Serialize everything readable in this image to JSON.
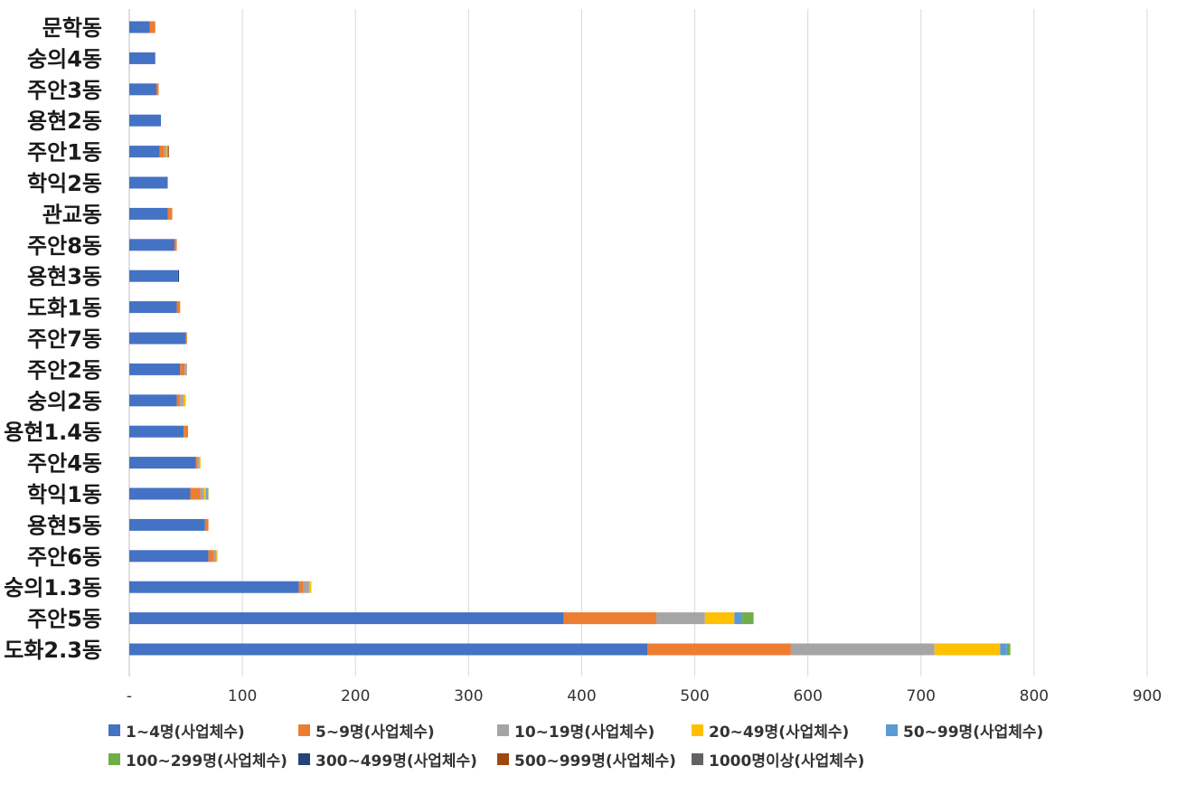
{
  "chart_data": {
    "type": "bar",
    "orientation": "horizontal",
    "stacked": true,
    "categories": [
      "문학동",
      "숭의4동",
      "주안3동",
      "용현2동",
      "주안1동",
      "학익2동",
      "관교동",
      "주안8동",
      "용현3동",
      "도화1동",
      "주안7동",
      "주안2동",
      "숭의2동",
      "용현1.4동",
      "주안4동",
      "학익1동",
      "용현5동",
      "주안6동",
      "숭의1.3동",
      "주안5동",
      "도화2.3동"
    ],
    "series": [
      {
        "name": "1~4명(사업체수)",
        "color": "#4472C4",
        "values": [
          18,
          23,
          24,
          28,
          27,
          34,
          34,
          40,
          43,
          42,
          50,
          45,
          42,
          48,
          59,
          54,
          67,
          70,
          150,
          384,
          458
        ]
      },
      {
        "name": "5~9명(사업체수)",
        "color": "#ED7D31",
        "values": [
          5,
          0,
          2,
          0,
          4,
          0,
          4,
          2,
          0,
          3,
          1,
          4,
          3,
          4,
          1,
          9,
          3,
          5,
          4,
          82,
          127
        ]
      },
      {
        "name": "10~19명(사업체수)",
        "color": "#A5A5A5",
        "values": [
          0,
          0,
          0,
          0,
          2,
          0,
          0,
          0,
          0,
          0,
          0,
          2,
          3,
          0,
          2,
          3,
          0,
          2,
          5,
          43,
          127
        ]
      },
      {
        "name": "20~49명(사업체수)",
        "color": "#FFC000",
        "values": [
          0,
          0,
          0,
          0,
          1,
          0,
          0,
          0,
          0,
          0,
          0,
          0,
          2,
          0,
          1,
          2,
          0,
          1,
          2,
          26,
          58
        ]
      },
      {
        "name": "50~99명(사업체수)",
        "color": "#5B9BD5",
        "values": [
          0,
          0,
          0,
          0,
          0,
          0,
          0,
          0,
          0,
          0,
          0,
          0,
          0,
          0,
          0,
          1,
          0,
          0,
          0,
          7,
          6
        ]
      },
      {
        "name": "100~299명(사업체수)",
        "color": "#70AD47",
        "values": [
          0,
          0,
          0,
          0,
          0,
          0,
          0,
          0,
          0,
          0,
          0,
          0,
          0,
          0,
          0,
          1,
          0,
          0,
          0,
          10,
          3
        ]
      },
      {
        "name": "300~499명(사업체수)",
        "color": "#264478",
        "values": [
          0,
          0,
          0,
          0,
          0,
          0,
          0,
          0,
          1,
          0,
          0,
          0,
          0,
          0,
          0,
          0,
          0,
          0,
          0,
          0,
          0
        ]
      },
      {
        "name": "500~999명(사업체수)",
        "color": "#9E480E",
        "values": [
          0,
          0,
          0,
          0,
          1,
          0,
          0,
          0,
          0,
          0,
          0,
          0,
          0,
          0,
          0,
          0,
          0,
          0,
          0,
          0,
          0
        ]
      },
      {
        "name": "1000명이상(사업체수)",
        "color": "#636363",
        "values": [
          0,
          0,
          0,
          0,
          0,
          0,
          0,
          0,
          0,
          0,
          0,
          0,
          0,
          0,
          0,
          0,
          0,
          0,
          0,
          0,
          0
        ]
      }
    ],
    "xlim": [
      0,
      900
    ],
    "ticks": [
      0,
      100,
      200,
      300,
      400,
      500,
      600,
      700,
      800,
      900
    ],
    "tick_labels": [
      "-",
      "100",
      "200",
      "300",
      "400",
      "500",
      "600",
      "700",
      "800",
      "900"
    ],
    "grid": true,
    "legend_position": "bottom"
  }
}
